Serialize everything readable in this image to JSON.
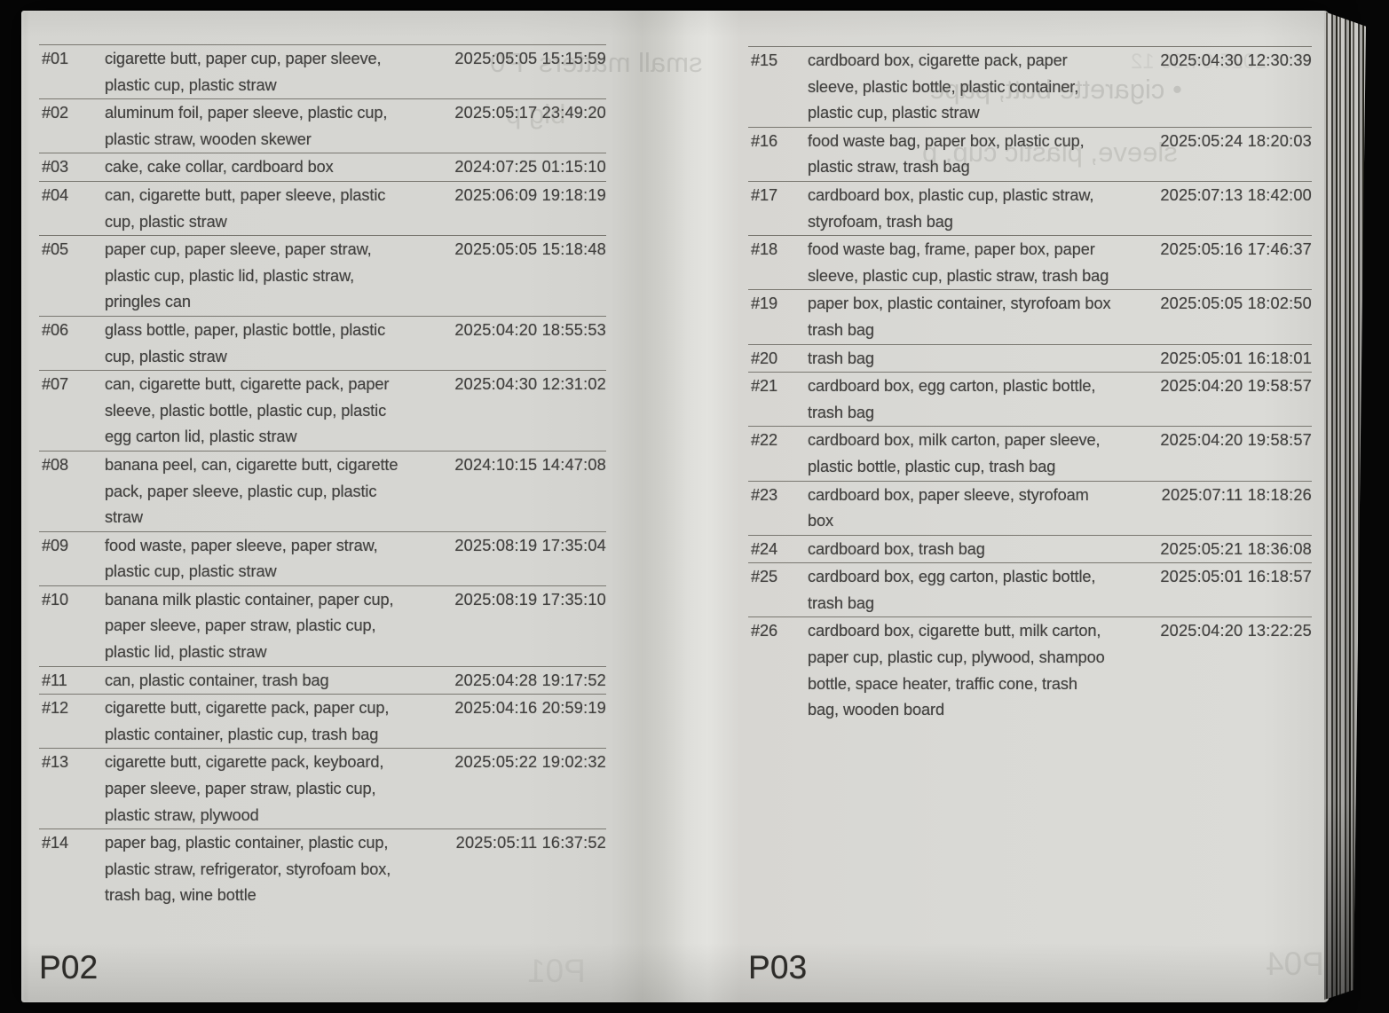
{
  "left_page": {
    "page_label": "P02",
    "entries": [
      {
        "id": "#01",
        "items": "cigarette butt, paper cup, paper sleeve,\nplastic cup, plastic straw",
        "timestamp": "2025:05:05 15:15:59"
      },
      {
        "id": "#02",
        "items": "aluminum foil, paper sleeve, plastic cup,\nplastic straw, wooden skewer",
        "timestamp": "2025:05:17 23:49:20"
      },
      {
        "id": "#03",
        "items": "cake, cake collar, cardboard box",
        "timestamp": "2024:07:25 01:15:10"
      },
      {
        "id": "#04",
        "items": "can, cigarette butt, paper sleeve, plastic\ncup, plastic straw",
        "timestamp": "2025:06:09 19:18:19"
      },
      {
        "id": "#05",
        "items": "paper cup, paper sleeve, paper straw,\nplastic cup, plastic lid, plastic straw,\npringles can",
        "timestamp": "2025:05:05 15:18:48"
      },
      {
        "id": "#06",
        "items": "glass bottle, paper, plastic bottle, plastic\ncup, plastic straw",
        "timestamp": "2025:04:20 18:55:53"
      },
      {
        "id": "#07",
        "items": "can, cigarette butt, cigarette pack, paper\nsleeve, plastic bottle, plastic cup, plastic\negg carton lid, plastic straw",
        "timestamp": "2025:04:30 12:31:02"
      },
      {
        "id": "#08",
        "items": "banana peel, can, cigarette butt, cigarette\npack, paper sleeve, plastic cup, plastic\nstraw",
        "timestamp": "2024:10:15 14:47:08"
      },
      {
        "id": "#09",
        "items": "food waste, paper sleeve, paper straw,\nplastic cup, plastic straw",
        "timestamp": "2025:08:19 17:35:04"
      },
      {
        "id": "#10",
        "items": "banana milk plastic container, paper cup,\npaper sleeve, paper straw, plastic cup,\nplastic lid, plastic straw",
        "timestamp": "2025:08:19 17:35:10"
      },
      {
        "id": "#11",
        "items": "can, plastic container, trash bag",
        "timestamp": "2025:04:28 19:17:52"
      },
      {
        "id": "#12",
        "items": "cigarette butt, cigarette pack, paper cup,\nplastic container, plastic cup, trash bag",
        "timestamp": "2025:04:16 20:59:19"
      },
      {
        "id": "#13",
        "items": "cigarette butt, cigarette pack, keyboard,\npaper sleeve, paper straw, plastic cup,\nplastic straw, plywood",
        "timestamp": "2025:05:22 19:02:32"
      },
      {
        "id": "#14",
        "items": "paper bag, plastic container, plastic cup,\nplastic straw, refrigerator, styrofoam box,\ntrash bag, wine bottle",
        "timestamp": "2025:05:11 16:37:52"
      }
    ]
  },
  "right_page": {
    "page_label": "P03",
    "entries": [
      {
        "id": "#15",
        "items": "cardboard box, cigarette pack, paper\nsleeve, plastic bottle, plastic container,\nplastic cup, plastic straw",
        "timestamp": "2025:04:30 12:30:39"
      },
      {
        "id": "#16",
        "items": "food waste bag, paper box, plastic cup,\nplastic straw, trash bag",
        "timestamp": "2025:05:24 18:20:03"
      },
      {
        "id": "#17",
        "items": "cardboard box, plastic cup, plastic straw,\nstyrofoam, trash bag",
        "timestamp": "2025:07:13 18:42:00"
      },
      {
        "id": "#18",
        "items": "food waste bag, frame, paper box, paper\nsleeve, plastic cup, plastic straw, trash bag",
        "timestamp": "2025:05:16 17:46:37"
      },
      {
        "id": "#19",
        "items": "paper box, plastic container, styrofoam box\ntrash bag",
        "timestamp": "2025:05:05 18:02:50"
      },
      {
        "id": "#20",
        "items": "trash bag",
        "timestamp": "2025:05:01 16:18:01"
      },
      {
        "id": "#21",
        "items": "cardboard box, egg carton, plastic bottle,\ntrash bag",
        "timestamp": "2025:04:20 19:58:57"
      },
      {
        "id": "#22",
        "items": "cardboard box, milk carton, paper sleeve,\nplastic bottle, plastic cup, trash bag",
        "timestamp": "2025:04:20 19:58:57"
      },
      {
        "id": "#23",
        "items": "cardboard box, paper sleeve, styrofoam\nbox",
        "timestamp": "2025:07:11 18:18:26"
      },
      {
        "id": "#24",
        "items": "cardboard box, trash bag",
        "timestamp": "2025:05:21 18:36:08"
      },
      {
        "id": "#25",
        "items": "cardboard box, egg carton, plastic bottle,\ntrash bag",
        "timestamp": "2025:05:01 16:18:57"
      },
      {
        "id": "#26",
        "items": "cardboard box, cigarette butt, milk carton,\npaper cup, plastic cup, plywood, shampoo\nbottle, space heater, traffic cone, trash\nbag, wooden board",
        "timestamp": "2025:04:20 13:22:25"
      }
    ]
  },
  "show_through": {
    "left_line1": "small matters  P0",
    "left_line2": "big p",
    "left_page_num": "P01",
    "right_time": "2025:04:30 12",
    "right_line1": "• cigarette butt, pape",
    "right_line2": "sleeve, plastic cup, p",
    "right_page_num": "P04"
  },
  "colors": {
    "background": "#060606",
    "paper": "#d6d6d2",
    "ink": "#434240",
    "rule": "#797770"
  }
}
